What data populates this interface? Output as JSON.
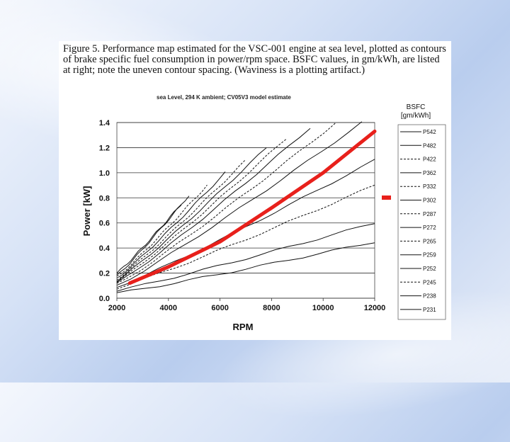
{
  "caption": "Figure 5.  Performance map estimated for the VSC-001 engine at sea level, plotted as contours of brake specific fuel consumption in power/rpm space.  BSFC values, in gm/kWh, are listed at right; note the uneven contour spacing.  (Waviness is a plotting artifact.)",
  "chart_data": {
    "type": "line",
    "title": "sea Level, 294 K ambient; CV05V3 model estimate",
    "xlabel": "RPM",
    "ylabel": "Power [kW]",
    "xlim": [
      2000,
      12000
    ],
    "ylim": [
      0,
      1.4
    ],
    "xticks": [
      2000,
      4000,
      6000,
      8000,
      10000,
      12000
    ],
    "xtick_labels": [
      "2000",
      "4000",
      "6000",
      "8000",
      "10000",
      "12000"
    ],
    "yticks": [
      0,
      0.2,
      0.4,
      0.6,
      0.8,
      1.0,
      1.2,
      1.4
    ],
    "ytick_labels": [
      "0.0",
      "0.2",
      "0.4",
      "0.6",
      "0.8",
      "1.0",
      "1.2",
      "1.4"
    ],
    "legend_title": "BSFC [gm/kWh]",
    "legend_position": "right",
    "series": [
      {
        "name": "P542",
        "style": "solid",
        "x": [
          2000,
          4500
        ],
        "y": [
          0.2,
          0.75
        ]
      },
      {
        "name": "P482",
        "style": "solid",
        "x": [
          2000,
          4800
        ],
        "y": [
          0.18,
          0.82
        ]
      },
      {
        "name": "P422",
        "style": "dashed",
        "x": [
          2000,
          5500
        ],
        "y": [
          0.17,
          0.9
        ]
      },
      {
        "name": "P362",
        "style": "solid",
        "x": [
          2000,
          6200
        ],
        "y": [
          0.16,
          1.0
        ]
      },
      {
        "name": "P332",
        "style": "dashed",
        "x": [
          2000,
          7000
        ],
        "y": [
          0.15,
          1.1
        ]
      },
      {
        "name": "P302",
        "style": "solid",
        "x": [
          2000,
          7800
        ],
        "y": [
          0.14,
          1.2
        ]
      },
      {
        "name": "P287",
        "style": "dashed",
        "x": [
          2000,
          8600
        ],
        "y": [
          0.13,
          1.28
        ]
      },
      {
        "name": "P272",
        "style": "solid",
        "x": [
          2000,
          9500
        ],
        "y": [
          0.12,
          1.36
        ]
      },
      {
        "name": "P265",
        "style": "dashed",
        "x": [
          2000,
          10500
        ],
        "y": [
          0.11,
          1.4
        ]
      },
      {
        "name": "P259",
        "style": "solid",
        "x": [
          2000,
          11500
        ],
        "y": [
          0.1,
          1.4
        ]
      },
      {
        "name": "P252",
        "style": "solid",
        "x": [
          2000,
          12000
        ],
        "y": [
          0.09,
          1.1
        ]
      },
      {
        "name": "P245",
        "style": "dashed",
        "x": [
          2000,
          12000
        ],
        "y": [
          0.08,
          0.9
        ]
      },
      {
        "name": "P238",
        "style": "solid",
        "x": [
          2000,
          12000
        ],
        "y": [
          0.06,
          0.6
        ]
      },
      {
        "name": "P231",
        "style": "solid",
        "x": [
          2000,
          12000
        ],
        "y": [
          0.04,
          0.45
        ]
      }
    ],
    "annotation": {
      "type": "thick-red-line",
      "color": "#e8201b",
      "x": [
        2500,
        4000,
        6000,
        8000,
        10000,
        12000
      ],
      "y": [
        0.12,
        0.25,
        0.45,
        0.72,
        1.0,
        1.33
      ]
    },
    "colors": {
      "line": "#111111",
      "annotation": "#e8201b"
    }
  }
}
